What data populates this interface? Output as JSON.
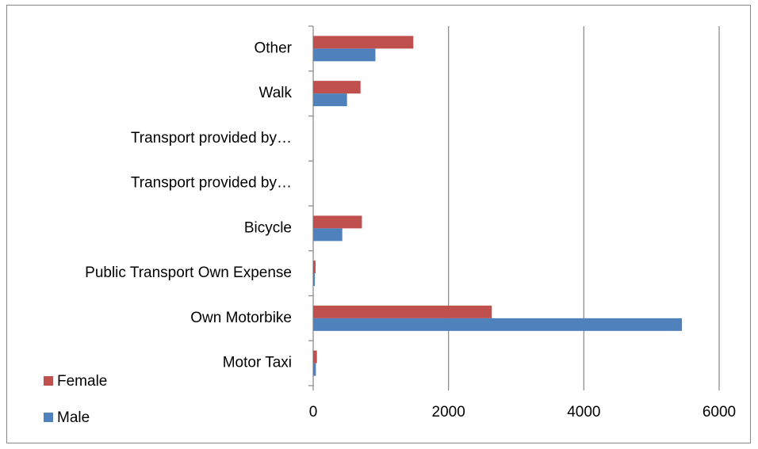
{
  "chart_data": {
    "type": "bar",
    "orientation": "horizontal",
    "categories": [
      "Other",
      "Walk",
      "Transport provided by…",
      "Transport provided by…",
      "Bicycle",
      "Public Transport Own Expense",
      "Own Motorbike",
      "Motor Taxi"
    ],
    "series": [
      {
        "name": "Female",
        "color": "#c0504d",
        "values": [
          1480,
          700,
          0,
          0,
          720,
          35,
          2640,
          55
        ]
      },
      {
        "name": "Male",
        "color": "#4f81bd",
        "values": [
          920,
          500,
          0,
          0,
          430,
          25,
          5450,
          40
        ]
      }
    ],
    "xlim": [
      0,
      6000
    ],
    "xticks": [
      0,
      2000,
      4000,
      6000
    ],
    "grid": true,
    "legend": "bottom-left"
  }
}
